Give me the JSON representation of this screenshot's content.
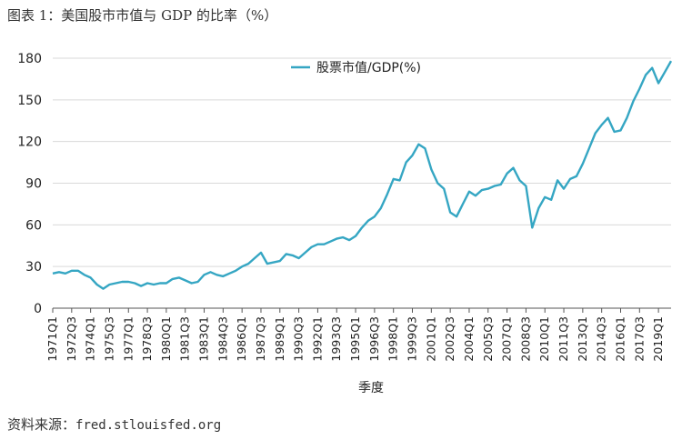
{
  "figure": {
    "title": "图表 1：美国股市市值与 GDP 的比率（%）",
    "source_label": "资料来源：",
    "source_url": "fred.stlouisfed.org"
  },
  "colors": {
    "series": "#35a6c3",
    "grid": "#d9d9d9",
    "axis": "#555555"
  },
  "chart_data": {
    "type": "line",
    "title": "图表 1：美国股市市值与 GDP 的比率（%）",
    "xlabel": "季度",
    "ylabel": "",
    "ylim": [
      0,
      180
    ],
    "yticks": [
      0,
      30,
      60,
      90,
      120,
      150,
      180
    ],
    "grid": "horizontal",
    "legend_position": "top-center",
    "x_tick_labels": [
      "1971Q1",
      "1972Q3",
      "1974Q1",
      "1975Q3",
      "1977Q1",
      "1978Q3",
      "1980Q1",
      "1981Q3",
      "1983Q1",
      "1984Q3",
      "1986Q1",
      "1987Q3",
      "1989Q1",
      "1990Q3",
      "1992Q1",
      "1993Q3",
      "1995Q1",
      "1996Q3",
      "1998Q1",
      "1999Q3",
      "2001Q1",
      "2002Q3",
      "2004Q1",
      "2005Q3",
      "2007Q1",
      "2008Q3",
      "2010Q1",
      "2011Q3",
      "2013Q1",
      "2014Q3",
      "2016Q1",
      "2017Q3",
      "2019Q1"
    ],
    "series": [
      {
        "name": "股票市值/GDP(%)",
        "points": [
          [
            "1971Q1",
            25
          ],
          [
            "1971Q3",
            26
          ],
          [
            "1972Q1",
            25
          ],
          [
            "1972Q3",
            27
          ],
          [
            "1973Q1",
            27
          ],
          [
            "1973Q3",
            24
          ],
          [
            "1974Q1",
            22
          ],
          [
            "1974Q3",
            17
          ],
          [
            "1975Q1",
            14
          ],
          [
            "1975Q3",
            17
          ],
          [
            "1976Q1",
            18
          ],
          [
            "1976Q3",
            19
          ],
          [
            "1977Q1",
            19
          ],
          [
            "1977Q3",
            18
          ],
          [
            "1978Q1",
            16
          ],
          [
            "1978Q3",
            18
          ],
          [
            "1979Q1",
            17
          ],
          [
            "1979Q3",
            18
          ],
          [
            "1980Q1",
            18
          ],
          [
            "1980Q3",
            21
          ],
          [
            "1981Q1",
            22
          ],
          [
            "1981Q3",
            20
          ],
          [
            "1982Q1",
            18
          ],
          [
            "1982Q3",
            19
          ],
          [
            "1983Q1",
            24
          ],
          [
            "1983Q3",
            26
          ],
          [
            "1984Q1",
            24
          ],
          [
            "1984Q3",
            23
          ],
          [
            "1985Q1",
            25
          ],
          [
            "1985Q3",
            27
          ],
          [
            "1986Q1",
            30
          ],
          [
            "1986Q3",
            32
          ],
          [
            "1987Q1",
            36
          ],
          [
            "1987Q3",
            40
          ],
          [
            "1988Q1",
            32
          ],
          [
            "1988Q3",
            33
          ],
          [
            "1989Q1",
            34
          ],
          [
            "1989Q3",
            39
          ],
          [
            "1990Q1",
            38
          ],
          [
            "1990Q3",
            36
          ],
          [
            "1991Q1",
            40
          ],
          [
            "1991Q3",
            44
          ],
          [
            "1992Q1",
            46
          ],
          [
            "1992Q3",
            46
          ],
          [
            "1993Q1",
            48
          ],
          [
            "1993Q3",
            50
          ],
          [
            "1994Q1",
            51
          ],
          [
            "1994Q3",
            49
          ],
          [
            "1995Q1",
            52
          ],
          [
            "1995Q3",
            58
          ],
          [
            "1996Q1",
            63
          ],
          [
            "1996Q3",
            66
          ],
          [
            "1997Q1",
            72
          ],
          [
            "1997Q3",
            82
          ],
          [
            "1998Q1",
            93
          ],
          [
            "1998Q3",
            92
          ],
          [
            "1999Q1",
            105
          ],
          [
            "1999Q3",
            110
          ],
          [
            "2000Q1",
            118
          ],
          [
            "2000Q3",
            115
          ],
          [
            "2001Q1",
            100
          ],
          [
            "2001Q3",
            90
          ],
          [
            "2002Q1",
            86
          ],
          [
            "2002Q3",
            69
          ],
          [
            "2003Q1",
            66
          ],
          [
            "2003Q3",
            75
          ],
          [
            "2004Q1",
            84
          ],
          [
            "2004Q3",
            81
          ],
          [
            "2005Q1",
            85
          ],
          [
            "2005Q3",
            86
          ],
          [
            "2006Q1",
            88
          ],
          [
            "2006Q3",
            89
          ],
          [
            "2007Q1",
            97
          ],
          [
            "2007Q3",
            101
          ],
          [
            "2008Q1",
            92
          ],
          [
            "2008Q3",
            88
          ],
          [
            "2009Q1",
            58
          ],
          [
            "2009Q3",
            72
          ],
          [
            "2010Q1",
            80
          ],
          [
            "2010Q3",
            78
          ],
          [
            "2011Q1",
            92
          ],
          [
            "2011Q3",
            86
          ],
          [
            "2012Q1",
            93
          ],
          [
            "2012Q3",
            95
          ],
          [
            "2013Q1",
            104
          ],
          [
            "2013Q3",
            115
          ],
          [
            "2014Q1",
            126
          ],
          [
            "2014Q3",
            132
          ],
          [
            "2015Q1",
            137
          ],
          [
            "2015Q3",
            127
          ],
          [
            "2016Q1",
            128
          ],
          [
            "2016Q3",
            137
          ],
          [
            "2017Q1",
            149
          ],
          [
            "2017Q3",
            158
          ],
          [
            "2018Q1",
            168
          ],
          [
            "2018Q3",
            173
          ],
          [
            "2019Q1",
            162
          ],
          [
            "2019Q3",
            170
          ],
          [
            "2020Q1",
            178
          ]
        ]
      }
    ]
  }
}
